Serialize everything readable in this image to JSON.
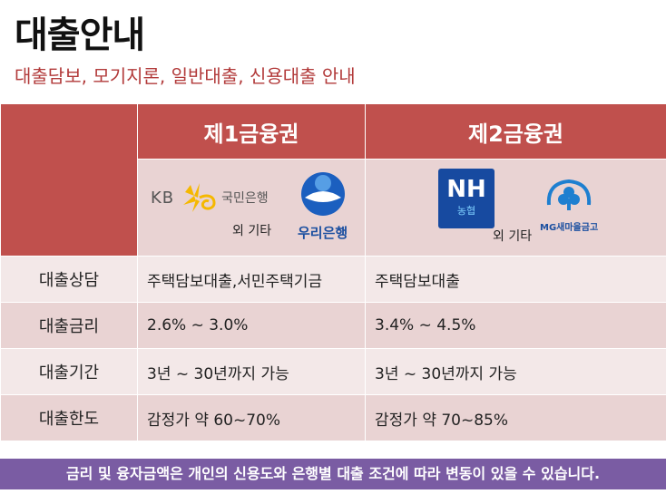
{
  "title": "대출안내",
  "subtitle": "대출담보, 모기지론, 일반대출, 신용대출 안내",
  "header": {
    "col1": "제1금융권",
    "col2": "제2금융권"
  },
  "logos": {
    "kb_text": "KB",
    "kb_name": "국민은행",
    "woori_name": "우리은행",
    "other1": "외 기타",
    "nh_letters": "NH",
    "nh_sub": "농협",
    "mg_name": "MG새마을금고",
    "other2": "외 기타"
  },
  "rows": [
    {
      "label": "대출상담",
      "col1": "주택담보대출,서민주택기금",
      "col2": "주택담보대출"
    },
    {
      "label": "대출금리",
      "col1": "2.6% ~ 3.0%",
      "col2": "3.4% ~ 4.5%"
    },
    {
      "label": "대출기간",
      "col1": "3년 ~ 30년까지 가능",
      "col2": "3년 ~ 30년까지 가능"
    },
    {
      "label": "대출한도",
      "col1": "감정가 약 60~70%",
      "col2": "감정가 약 70~85%"
    }
  ],
  "footer": "금리 및 융자금액은 개인의 신용도와 은행별 대출 조건에 따라 변동이 있을 수 있습니다.",
  "colors": {
    "header_red": "#c0504d",
    "subtitle_red": "#b23a3a",
    "footer_purple": "#7a5ca3",
    "row_light": "#f3e8e8",
    "row_dark": "#e9d3d3"
  }
}
